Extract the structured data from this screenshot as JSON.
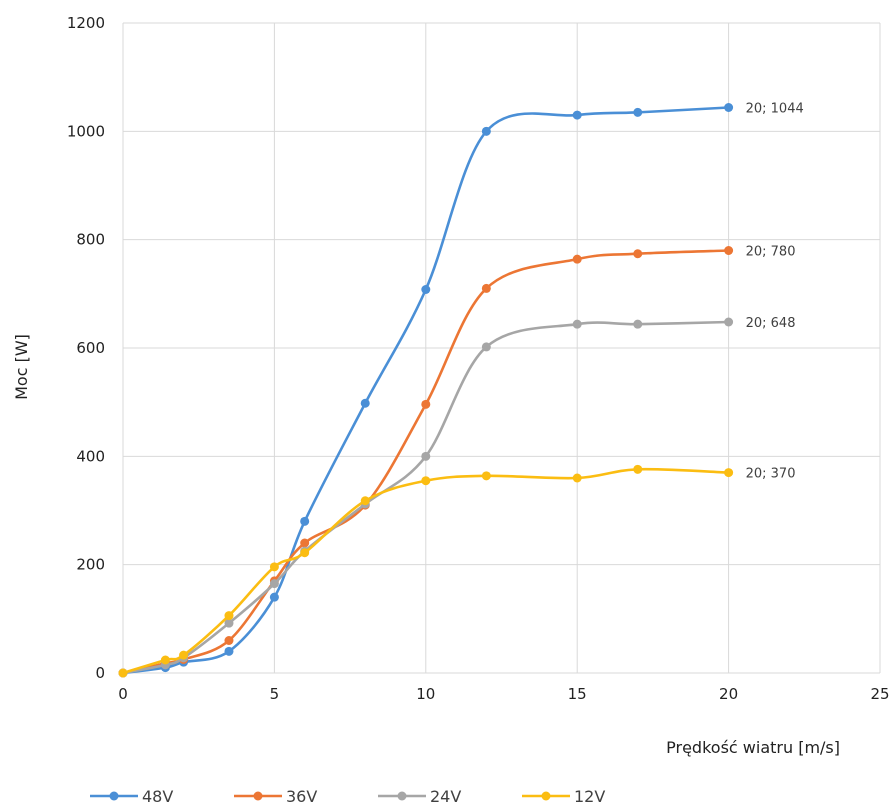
{
  "chart_data": {
    "type": "line",
    "xlabel": "Prędkość wiatru [m/s]",
    "ylabel": "Moc [W]",
    "xlim": [
      0,
      25
    ],
    "ylim": [
      0,
      1200
    ],
    "xticks": [
      0,
      5,
      10,
      15,
      20,
      25
    ],
    "yticks": [
      0,
      200,
      400,
      600,
      800,
      1000,
      1200
    ],
    "grid": true,
    "smooth": true,
    "legend_position": "bottom",
    "series": [
      {
        "name": "48V",
        "color": "#4a8fd6",
        "points": [
          [
            0,
            0
          ],
          [
            1.4,
            10
          ],
          [
            2,
            20
          ],
          [
            3.5,
            40
          ],
          [
            5,
            140
          ],
          [
            6,
            280
          ],
          [
            8,
            498
          ],
          [
            10,
            708
          ],
          [
            12,
            1000
          ],
          [
            15,
            1030
          ],
          [
            17,
            1035
          ],
          [
            20,
            1044
          ]
        ],
        "end_label": "20; 1044"
      },
      {
        "name": "36V",
        "color": "#ec7634",
        "points": [
          [
            0,
            0
          ],
          [
            1.4,
            18
          ],
          [
            2,
            25
          ],
          [
            3.5,
            60
          ],
          [
            5,
            170
          ],
          [
            6,
            240
          ],
          [
            8,
            310
          ],
          [
            10,
            496
          ],
          [
            12,
            710
          ],
          [
            15,
            764
          ],
          [
            17,
            774
          ],
          [
            20,
            780
          ]
        ],
        "end_label": "20; 780"
      },
      {
        "name": "24V",
        "color": "#a6a6a6",
        "points": [
          [
            0,
            0
          ],
          [
            1.4,
            15
          ],
          [
            2,
            28
          ],
          [
            3.5,
            92
          ],
          [
            5,
            165
          ],
          [
            6,
            225
          ],
          [
            8,
            312
          ],
          [
            10,
            400
          ],
          [
            12,
            602
          ],
          [
            15,
            644
          ],
          [
            17,
            644
          ],
          [
            20,
            648
          ]
        ],
        "end_label": "20; 648"
      },
      {
        "name": "12V",
        "color": "#fbbd12",
        "points": [
          [
            0,
            0
          ],
          [
            1.4,
            24
          ],
          [
            2,
            33
          ],
          [
            3.5,
            106
          ],
          [
            5,
            196
          ],
          [
            6,
            222
          ],
          [
            8,
            318
          ],
          [
            10,
            355
          ],
          [
            12,
            364
          ],
          [
            15,
            360
          ],
          [
            17,
            376
          ],
          [
            20,
            370
          ]
        ],
        "end_label": "20; 370"
      }
    ]
  }
}
